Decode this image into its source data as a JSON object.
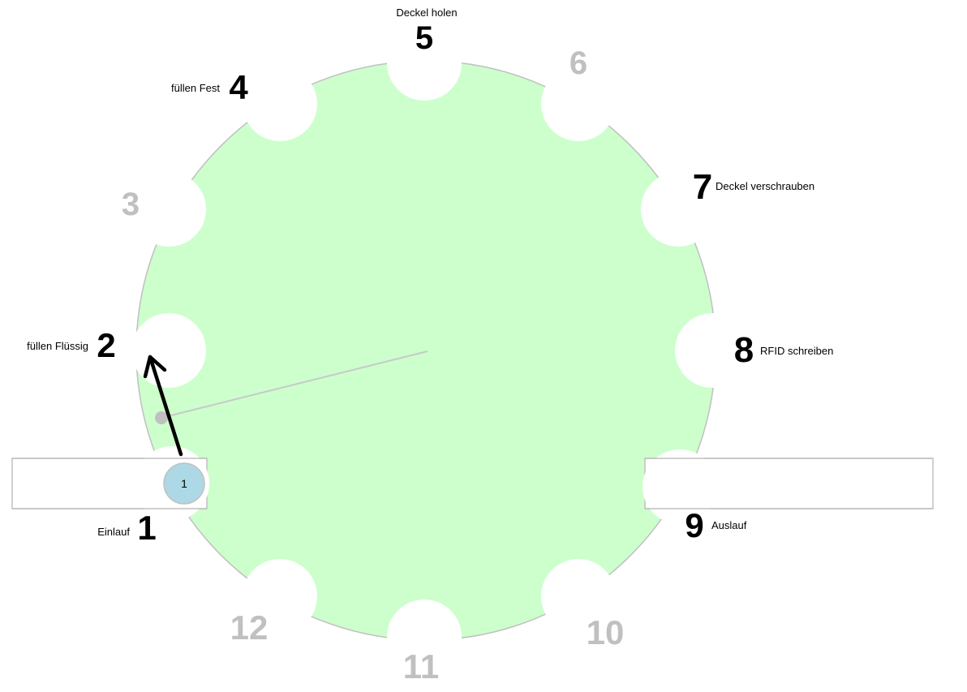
{
  "diagram": {
    "colors": {
      "disc_fill": "#ccffcc",
      "disc_edge": "#c0c0c0",
      "hand": "#c8c8c8",
      "hand_tip": "#c0c0c0",
      "conveyor_border": "#c0c0c0",
      "slot_fill": "#add8e6",
      "active_number": "#000000",
      "inactive_number": "#c0c0c0",
      "arrow": "#000000"
    },
    "conveyor_in": {
      "name": "Einlauf"
    },
    "conveyor_out": {
      "name": "Auslauf"
    },
    "occupied_slot": {
      "label": "1"
    },
    "stations": [
      {
        "num": "1",
        "label": "Einlauf",
        "active": true
      },
      {
        "num": "2",
        "label": "füllen Flüssig",
        "active": true
      },
      {
        "num": "3",
        "label": "",
        "active": false
      },
      {
        "num": "4",
        "label": "füllen Fest",
        "active": true
      },
      {
        "num": "5",
        "label": "Deckel holen",
        "active": true
      },
      {
        "num": "6",
        "label": "",
        "active": false
      },
      {
        "num": "7",
        "label": "Deckel verschrauben",
        "active": true
      },
      {
        "num": "8",
        "label": "RFID schreiben",
        "active": true
      },
      {
        "num": "9",
        "label": "Auslauf",
        "active": true
      },
      {
        "num": "10",
        "label": "",
        "active": false
      },
      {
        "num": "11",
        "label": "",
        "active": false
      },
      {
        "num": "12",
        "label": "",
        "active": false
      }
    ]
  }
}
